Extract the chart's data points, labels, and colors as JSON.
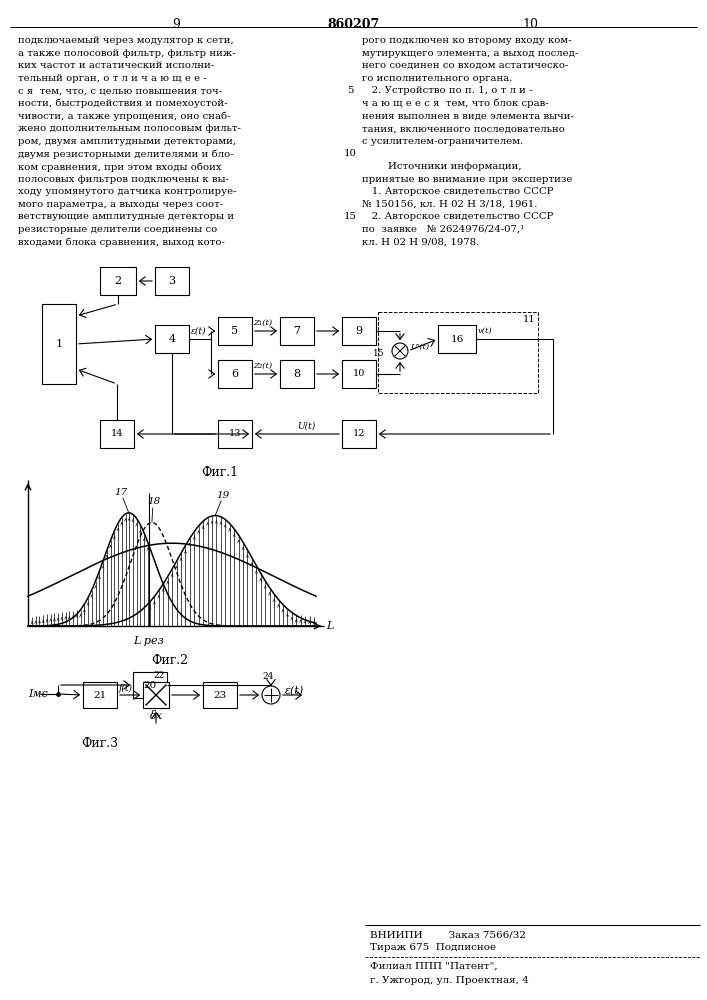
{
  "page_numbers": [
    "9",
    "860207",
    "10"
  ],
  "left_text": [
    "подключаемый через модулятор к сети,",
    "а также полосовой фильтр, фильтр ниж-",
    "ких частот и астатический исполни-",
    "тельный орган, о т л и ч а ю щ е е -",
    "с я  тем, что, с целью повышения точ-",
    "ности, быстродействия и помехоустой-",
    "чивости, а также упрощения, оно снаб-",
    "жено дополнительным полосовым фильт-",
    "ром, двумя амплитудными детекторами,",
    "двумя резисторными делителями и бло-",
    "ком сравнения, при этом входы обоих",
    "полосовых фильтров подключены к вы-",
    "ходу упомянутого датчика контролируе-",
    "мого параметра, а выходы через соот-",
    "ветствующие амплитудные детекторы и",
    "резисторные делители соединены со",
    "входами блока сравнения, выход кото-"
  ],
  "right_text": [
    "рого подключен ко второму входу ком-",
    "мутирукщего элемента, а выход послед-",
    "него соединен со входом астатическо-",
    "го исполнительного органа.",
    "   2. Устройство по п. 1, о т л и -",
    "ч а ю щ е е с я  тем, что блок срав-",
    "нения выполнен в виде элемента вычи-",
    "тания, включенного последовательно",
    "с усилителем-ограничителем.",
    "",
    "        Источники информации,",
    "принятые во внимание при экспертизе",
    "   1. Авторское свидетельство СССР",
    "№ 150156, кл. Н 02 Н 3/18, 1961.",
    "   2. Авторское свидетельство СССР",
    "по  заявке   № 2624976/24-07,¹",
    "кл. Н 02 Н 9/08, 1978."
  ],
  "fig1_caption": "Фиг.1",
  "fig2_caption": "Фиг.2",
  "fig3_caption": "Фиг.3",
  "fig2_xlabel": "L рез",
  "fig2_labels": [
    "17",
    "18",
    "19"
  ],
  "footer_line1": "ВНИИПИ        Заказ 7566/32",
  "footer_line2": "Тираж 675  Подписное",
  "footer_line3": "Филиал ППП \"Патент\",",
  "footer_line4": "г. Ужгород, ул. Проектная, 4",
  "bg_color": "#ffffff",
  "text_color": "#000000"
}
